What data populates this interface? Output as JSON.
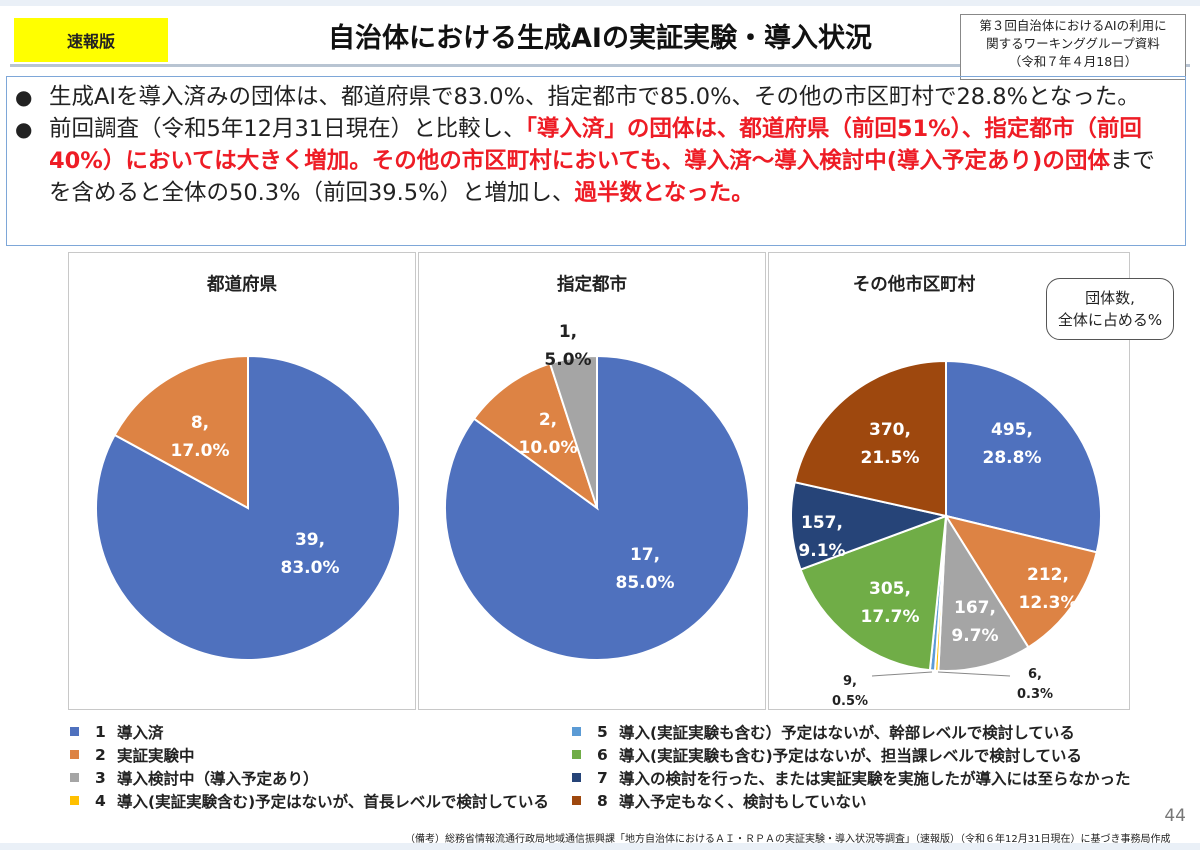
{
  "header": {
    "badge": "速報版",
    "title": "自治体における生成AIの実証実験・導入状況",
    "source_lines": [
      "第３回自治体におけるAIの利用に",
      "関するワーキンググループ資料",
      "（令和７年４月18日）"
    ]
  },
  "summary": {
    "bullet1": [
      {
        "text": "生成AIを導入済みの団体は、都道府県で83.0%、指定都市で85.0%、その他の市区町村で28.8%となった。",
        "red": false
      }
    ],
    "bullet2": [
      {
        "text": "前回調査（令和5年12月31日現在）と比較し、",
        "red": false
      },
      {
        "text": "「導入済」の団体は、都道府県（前回51%）、指定都市（前回40%）においては大きく増加。その他の市区町村においても、導入済～導入検討中(導入予定あり)の団体",
        "red": true
      },
      {
        "text": "までを含めると全体の50.3%（前回39.5%）と増加し、",
        "red": false
      },
      {
        "text": "過半数となった。",
        "red": true
      }
    ]
  },
  "note": [
    "団体数,",
    "全体に占める%"
  ],
  "chart_data": [
    {
      "type": "pie",
      "title": "都道府県",
      "start": "12 o'clock, clockwise",
      "slices": [
        {
          "category": 1,
          "count": 39,
          "percent": "83.0%",
          "color": "#4f71be"
        },
        {
          "category": 2,
          "count": 8,
          "percent": "17.0%",
          "color": "#dd8344"
        }
      ]
    },
    {
      "type": "pie",
      "title": "指定都市",
      "start": "12 o'clock, clockwise",
      "slices": [
        {
          "category": 1,
          "count": 17,
          "percent": "85.0%",
          "color": "#4f71be"
        },
        {
          "category": 2,
          "count": 2,
          "percent": "10.0%",
          "color": "#dd8344"
        },
        {
          "category": 3,
          "count": 1,
          "percent": "5.0%",
          "color": "#a5a5a5"
        }
      ]
    },
    {
      "type": "pie",
      "title": "その他市区町村",
      "start": "12 o'clock, clockwise",
      "slices": [
        {
          "category": 1,
          "count": 495,
          "percent": "28.8%",
          "color": "#4f71be"
        },
        {
          "category": 2,
          "count": 212,
          "percent": "12.3%",
          "color": "#dd8344"
        },
        {
          "category": 3,
          "count": 167,
          "percent": "9.7%",
          "color": "#a5a5a5"
        },
        {
          "category": 4,
          "count": 6,
          "percent": "0.3%",
          "color": "#ffc000"
        },
        {
          "category": 5,
          "count": 9,
          "percent": "0.5%",
          "color": "#5b9bd5"
        },
        {
          "category": 6,
          "count": 305,
          "percent": "17.7%",
          "color": "#70ad47"
        },
        {
          "category": 7,
          "count": 157,
          "percent": "9.1%",
          "color": "#264478"
        },
        {
          "category": 8,
          "count": 370,
          "percent": "21.5%",
          "color": "#9e480e"
        }
      ]
    }
  ],
  "legend": [
    {
      "num": "1",
      "label": "導入済",
      "color": "#4f71be"
    },
    {
      "num": "2",
      "label": "実証実験中",
      "color": "#dd8344"
    },
    {
      "num": "3",
      "label": "導入検討中（導入予定あり）",
      "color": "#a5a5a5"
    },
    {
      "num": "4",
      "label": "導入(実証実験含む)予定はないが、首長レベルで検討している",
      "color": "#ffc000"
    },
    {
      "num": "5",
      "label": "導入(実証実験も含む）予定はないが、幹部レベルで検討している",
      "color": "#5b9bd5"
    },
    {
      "num": "6",
      "label": "導入(実証実験も含む)予定はないが、担当課レベルで検討している",
      "color": "#70ad47"
    },
    {
      "num": "7",
      "label": "導入の検討を行った、または実証実験を実施したが導入には至らなかった",
      "color": "#264478"
    },
    {
      "num": "8",
      "label": "導入予定もなく、検討もしていない",
      "color": "#9e480e"
    }
  ],
  "page_number": "44",
  "footnote": "（備考）総務省情報流通行政局地域通信振興課「地方自治体におけるＡＩ・ＲＰＡの実証実験・導入状況等調査」（速報版）（令和６年12月31日現在）に基づき事務局作成"
}
